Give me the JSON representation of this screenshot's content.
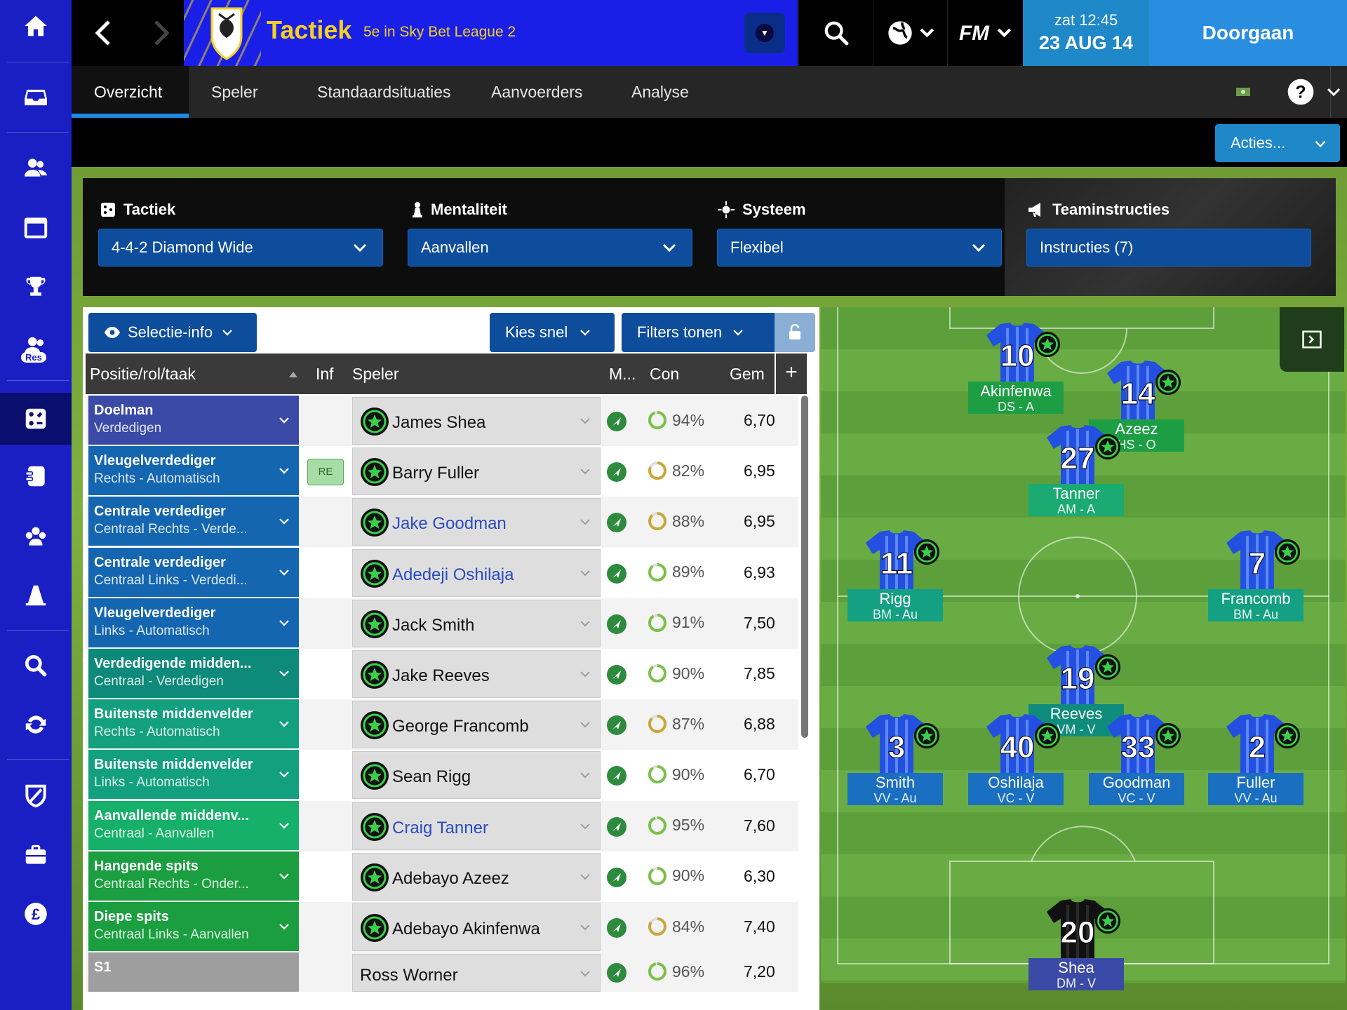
{
  "header": {
    "title": "Tactiek",
    "subtitle": "5e in Sky Bet League 2",
    "time": "zat 12:45",
    "date": "23 AUG 14",
    "continue_label": "Doorgaan"
  },
  "tabs": [
    "Overzicht",
    "Speler",
    "Standaardsituaties",
    "Aanvoerders",
    "Analyse"
  ],
  "actions_label": "Acties...",
  "tactic_bar": {
    "tactic_label": "Tactiek",
    "tactic_value": "4-4-2 Diamond Wide",
    "mentality_label": "Mentaliteit",
    "mentality_value": "Aanvallen",
    "system_label": "Systeem",
    "system_value": "Flexibel",
    "team_instr_label": "Teaminstructies",
    "team_instr_value": "Instructies (7)"
  },
  "panel": {
    "selection_info": "Selectie-info",
    "quick_pick": "Kies snel",
    "filters": "Filters tonen",
    "columns": {
      "position": "Positie/rol/taak",
      "inf": "Inf",
      "player": "Speler",
      "morale": "M...",
      "con": "Con",
      "avg": "Gem",
      "add": "+"
    }
  },
  "rows": [
    {
      "pos": "Doelman",
      "role": "Verdedigen",
      "color": "#3b4aa6",
      "inf": "",
      "player": "James Shea",
      "link": false,
      "con": "94%",
      "con_frac": 0.94,
      "avg": "6,70"
    },
    {
      "pos": "Vleugelverdediger",
      "role": "Rechts - Automatisch",
      "color": "#1466b0",
      "inf": "RE",
      "player": "Barry Fuller",
      "link": false,
      "con": "82%",
      "con_frac": 0.82,
      "avg": "6,95"
    },
    {
      "pos": "Centrale verdediger",
      "role": "Centraal Rechts - Verde...",
      "color": "#1466b0",
      "inf": "",
      "player": "Jake Goodman",
      "link": true,
      "con": "88%",
      "con_frac": 0.88,
      "avg": "6,95"
    },
    {
      "pos": "Centrale verdediger",
      "role": "Centraal Links - Verdedi...",
      "color": "#1466b0",
      "inf": "",
      "player": "Adedeji Oshilaja",
      "link": true,
      "con": "89%",
      "con_frac": 0.89,
      "avg": "6,93"
    },
    {
      "pos": "Vleugelverdediger",
      "role": "Links - Automatisch",
      "color": "#1466b0",
      "inf": "",
      "player": "Jack Smith",
      "link": false,
      "con": "91%",
      "con_frac": 0.91,
      "avg": "7,50"
    },
    {
      "pos": "Verdedigende midden...",
      "role": "Centraal - Verdedigen",
      "color": "#0e8a7a",
      "inf": "",
      "player": "Jake Reeves",
      "link": false,
      "con": "90%",
      "con_frac": 0.9,
      "avg": "7,85"
    },
    {
      "pos": "Buitenste middenvelder",
      "role": "Rechts - Automatisch",
      "color": "#13a07e",
      "inf": "",
      "player": "George Francomb",
      "link": false,
      "con": "87%",
      "con_frac": 0.87,
      "avg": "6,88"
    },
    {
      "pos": "Buitenste middenvelder",
      "role": "Links - Automatisch",
      "color": "#13a07e",
      "inf": "",
      "player": "Sean Rigg",
      "link": false,
      "con": "90%",
      "con_frac": 0.9,
      "avg": "6,70"
    },
    {
      "pos": "Aanvallende middenv...",
      "role": "Centraal - Aanvallen",
      "color": "#16b06a",
      "inf": "",
      "player": "Craig Tanner",
      "link": true,
      "con": "95%",
      "con_frac": 0.95,
      "avg": "7,60"
    },
    {
      "pos": "Hangende spits",
      "role": "Centraal Rechts - Onder...",
      "color": "#1a9e3f",
      "inf": "",
      "player": "Adebayo Azeez",
      "link": false,
      "con": "90%",
      "con_frac": 0.9,
      "avg": "6,30"
    },
    {
      "pos": "Diepe spits",
      "role": "Centraal Links - Aanvallen",
      "color": "#1a9e3f",
      "inf": "",
      "player": "Adebayo Akinfenwa",
      "link": false,
      "con": "84%",
      "con_frac": 0.84,
      "avg": "7,40"
    }
  ],
  "sub_row": {
    "pos": "S1",
    "player": "Ross Worner",
    "con": "96%",
    "con_frac": 0.96,
    "avg": "7,20"
  },
  "pitch_players": [
    {
      "num": "10",
      "name": "Akinfenwa",
      "role": "DS - A",
      "band": "#1d9e45"
    },
    {
      "num": "14",
      "name": "Azeez",
      "role": "HS - O",
      "band": "#1d9e45"
    },
    {
      "num": "27",
      "name": "Tanner",
      "role": "AM - A",
      "band": "#1aaa72"
    },
    {
      "num": "11",
      "name": "Rigg",
      "role": "BM - Au",
      "band": "#14a082"
    },
    {
      "num": "7",
      "name": "Francomb",
      "role": "BM - Au",
      "band": "#14a082"
    },
    {
      "num": "19",
      "name": "Reeves",
      "role": "VM - V",
      "band": "#0f8c7c"
    },
    {
      "num": "3",
      "name": "Smith",
      "role": "VV - Au",
      "band": "#1a6fc0"
    },
    {
      "num": "40",
      "name": "Oshilaja",
      "role": "VC - V",
      "band": "#1a6fc0"
    },
    {
      "num": "33",
      "name": "Goodman",
      "role": "VC - V",
      "band": "#1a6fc0"
    },
    {
      "num": "2",
      "name": "Fuller",
      "role": "VV - Au",
      "band": "#1a6fc0"
    },
    {
      "num": "20",
      "name": "Shea",
      "role": "DM - V",
      "band": "#3b4aa6",
      "gk": true
    }
  ],
  "sidebar_icons": [
    "home-icon",
    "inbox-icon",
    "squad-icon",
    "calendar-icon",
    "trophy-icon",
    "reserves-icon",
    "tactics-icon",
    "training-icon",
    "staff-icon",
    "cone-icon",
    "search-icon",
    "transfers-icon",
    "club-crest-icon",
    "briefcase-icon",
    "finance-icon"
  ],
  "sidebar_res_label": "Res"
}
